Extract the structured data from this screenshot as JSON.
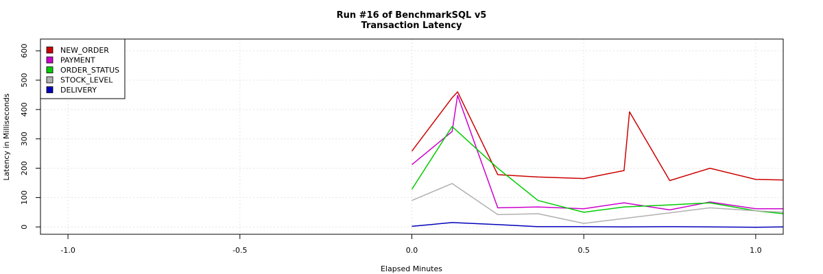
{
  "chart_data": {
    "type": "line",
    "title": "Run #16 of BenchmarkSQL v5",
    "subtitle": "Transaction Latency",
    "xlabel": "Elapsed Minutes",
    "ylabel": "Latency in Milliseconds",
    "xlim": [
      -1.08,
      1.08
    ],
    "ylim": [
      -25,
      640
    ],
    "x_ticks": [
      -1.0,
      -0.5,
      0.0,
      0.5,
      1.0
    ],
    "x_tick_labels": [
      "-1.0",
      "-0.5",
      "0.0",
      "0.5",
      "1.0"
    ],
    "y_ticks": [
      0,
      100,
      200,
      300,
      400,
      500,
      600
    ],
    "y_tick_labels": [
      "0",
      "100",
      "200",
      "300",
      "400",
      "500",
      "600"
    ],
    "grid": true,
    "legend_position": "top-left",
    "series": [
      {
        "name": "NEW_ORDER",
        "color": "#cc0000",
        "x": [
          0.0,
          0.117,
          0.133,
          0.25,
          0.367,
          0.5,
          0.617,
          0.633,
          0.75,
          0.867,
          1.0,
          1.08
        ],
        "y": [
          258,
          440,
          460,
          178,
          170,
          165,
          192,
          392,
          158,
          200,
          162,
          160
        ]
      },
      {
        "name": "PAYMENT",
        "color": "#cc00cc",
        "x": [
          0.0,
          0.117,
          0.133,
          0.25,
          0.367,
          0.5,
          0.617,
          0.75,
          0.867,
          1.0,
          1.08
        ],
        "y": [
          212,
          325,
          448,
          65,
          68,
          62,
          82,
          58,
          85,
          62,
          62
        ]
      },
      {
        "name": "ORDER_STATUS",
        "color": "#00cc00",
        "x": [
          0.0,
          0.117,
          0.25,
          0.367,
          0.5,
          0.617,
          0.75,
          0.867,
          1.0,
          1.08
        ],
        "y": [
          128,
          342,
          200,
          90,
          50,
          68,
          75,
          82,
          55,
          45
        ]
      },
      {
        "name": "STOCK_LEVEL",
        "color": "#b0b0b0",
        "x": [
          0.0,
          0.117,
          0.25,
          0.367,
          0.5,
          0.75,
          0.867,
          1.0,
          1.08
        ],
        "y": [
          90,
          148,
          42,
          45,
          12,
          48,
          65,
          55,
          50
        ]
      },
      {
        "name": "DELIVERY",
        "color": "#0000bb",
        "x": [
          0.0,
          0.117,
          0.25,
          0.367,
          0.5,
          0.617,
          0.75,
          0.867,
          1.0,
          1.08
        ],
        "y": [
          2,
          15,
          8,
          1,
          1,
          0,
          1,
          0,
          -1,
          0
        ]
      }
    ]
  }
}
